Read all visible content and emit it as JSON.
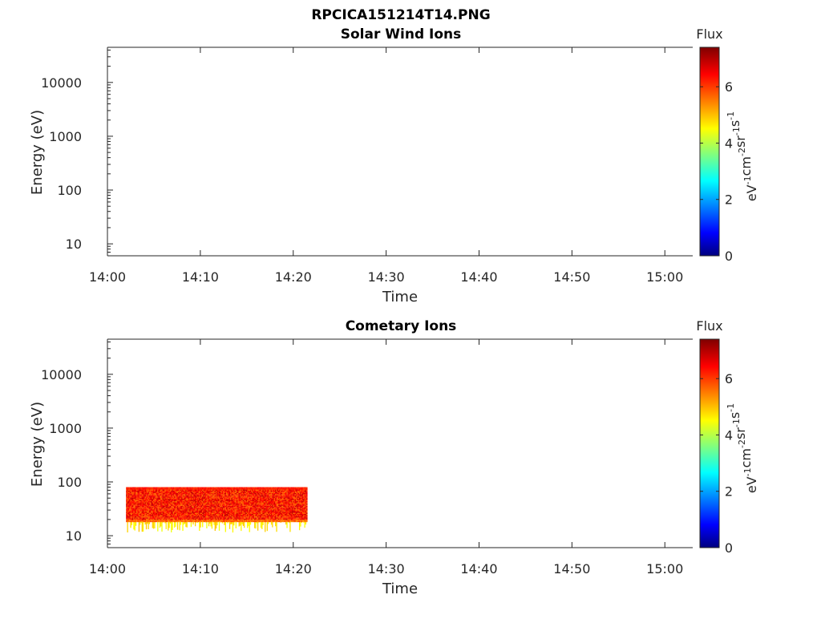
{
  "figure": {
    "title": "RPCICA151214T14.PNG"
  },
  "chart_data": [
    {
      "type": "heatmap",
      "title": "Solar Wind Ions",
      "xlabel": "Time",
      "ylabel": "Energy (eV)",
      "x_ticks": [
        "14:00",
        "14:10",
        "14:20",
        "14:30",
        "14:40",
        "14:50",
        "15:00"
      ],
      "xlim_minutes": [
        0,
        63
      ],
      "y_scale": "log",
      "ylim": [
        6,
        45000
      ],
      "y_ticks": [
        {
          "value": 10,
          "label": "10"
        },
        {
          "value": 100,
          "label": "100"
        },
        {
          "value": 1000,
          "label": "1000"
        },
        {
          "value": 10000,
          "label": "10000"
        }
      ],
      "colorbar": {
        "title": "Flux",
        "unit": {
          "base": "eV",
          "parts": [
            [
              "eV",
              "-1"
            ],
            [
              "cm",
              "-2"
            ],
            [
              "sr",
              "-1"
            ],
            [
              "s",
              "-1"
            ]
          ]
        },
        "range": [
          0,
          7.4
        ],
        "ticks": [
          {
            "value": 0,
            "label": "0"
          },
          {
            "value": 2,
            "label": "2"
          },
          {
            "value": 4,
            "label": "4"
          },
          {
            "value": 6,
            "label": "6"
          }
        ],
        "colormap": "jet"
      },
      "data": []
    },
    {
      "type": "heatmap",
      "title": "Cometary Ions",
      "xlabel": "Time",
      "ylabel": "Energy (eV)",
      "x_ticks": [
        "14:00",
        "14:10",
        "14:20",
        "14:30",
        "14:40",
        "14:50",
        "15:00"
      ],
      "xlim_minutes": [
        0,
        63
      ],
      "y_scale": "log",
      "ylim": [
        6,
        45000
      ],
      "y_ticks": [
        {
          "value": 10,
          "label": "10"
        },
        {
          "value": 100,
          "label": "100"
        },
        {
          "value": 1000,
          "label": "1000"
        },
        {
          "value": 10000,
          "label": "10000"
        }
      ],
      "colorbar": {
        "title": "Flux",
        "unit": {
          "base": "eV",
          "parts": [
            [
              "eV",
              "-1"
            ],
            [
              "cm",
              "-2"
            ],
            [
              "sr",
              "-1"
            ],
            [
              "s",
              "-1"
            ]
          ]
        },
        "range": [
          0,
          7.4
        ],
        "ticks": [
          {
            "value": 0,
            "label": "0"
          },
          {
            "value": 2,
            "label": "2"
          },
          {
            "value": 4,
            "label": "4"
          },
          {
            "value": 6,
            "label": "6"
          }
        ],
        "colormap": "jet"
      },
      "data": [
        {
          "t_start_min": 2.0,
          "t_end_min": 21.5,
          "e_min": 18,
          "e_max": 80,
          "flux_typical": 6.3,
          "flux_low_edge": 4.5
        }
      ]
    }
  ]
}
